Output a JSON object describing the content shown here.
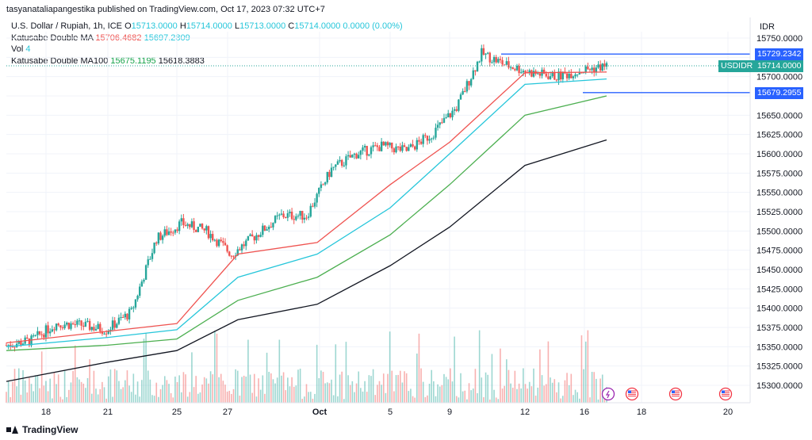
{
  "credit": "tasyanataliapangestika published on TradingView.com, Oct 17, 2023 07:32 UTC+7",
  "legend": {
    "symbol": "U.S. Dollar / Rupiah, 1h, ICE",
    "o_label": "O",
    "o": "15713.0000",
    "h_label": "H",
    "h": "15714.0000",
    "l_label": "L",
    "l": "15713.0000",
    "c_label": "C",
    "c": "15714.0000",
    "change": "0.0000 (0.00%)",
    "ma1_name": "Katusabe Double MA",
    "ma1_a": "15706.4682",
    "ma1_b": "15697.2809",
    "vol_name": "Vol",
    "vol_value": "4",
    "ma2_name": "Katusabe Double MA100",
    "ma2_a": "15675.1195",
    "ma2_b": "15618.3883"
  },
  "currency": "IDR",
  "price_tags": {
    "upper_level": "15729.2342",
    "symbol": "USDIDR",
    "last": "15714.0000",
    "lower_level": "15679.2955"
  },
  "footer": "TradingView",
  "colors": {
    "up": "#26a69a",
    "down": "#ef5350",
    "ma_red": "#ef5350",
    "ma_cyan": "#26c6da",
    "ma_green": "#4caf50",
    "ma_black": "#131722",
    "level": "#2962ff"
  },
  "chart_data": {
    "type": "line",
    "title": "U.S. Dollar / Rupiah, 1h, ICE",
    "x_ticks": [
      "18",
      "21",
      "25",
      "27",
      "Oct",
      "5",
      "9",
      "12",
      "16",
      "18",
      "20"
    ],
    "y_ticks": [
      "15750.0000",
      "15725.0000",
      "15700.0000",
      "15675.0000",
      "15650.0000",
      "15625.0000",
      "15600.0000",
      "15575.0000",
      "15550.0000",
      "15525.0000",
      "15500.0000",
      "15475.0000",
      "15450.0000",
      "15425.0000",
      "15400.0000",
      "15375.0000",
      "15350.0000",
      "15325.0000",
      "15300.0000"
    ],
    "ylim": [
      15285,
      15760
    ],
    "grid": true,
    "x": [
      "18",
      "21",
      "25",
      "27",
      "Oct",
      "5",
      "9",
      "12",
      "16"
    ],
    "series": [
      {
        "name": "Katusabe Double MA",
        "color": "#ef5350",
        "values": [
          15355,
          15370,
          15380,
          15470,
          15485,
          15560,
          15615,
          15705,
          15706
        ]
      },
      {
        "name": "Katusabe Double MA",
        "color": "#26c6da",
        "values": [
          15350,
          15362,
          15372,
          15440,
          15470,
          15530,
          15600,
          15690,
          15697
        ]
      },
      {
        "name": "Katusabe Double MA100",
        "color": "#4caf50",
        "values": [
          15345,
          15352,
          15360,
          15410,
          15440,
          15495,
          15560,
          15650,
          15675
        ]
      },
      {
        "name": "Katusabe Double MA100",
        "color": "#131722",
        "values": [
          15305,
          15330,
          15345,
          15385,
          15405,
          15455,
          15505,
          15585,
          15618
        ]
      }
    ],
    "price_closes": [
      15352,
      15358,
      15380,
      15378,
      15372,
      15395,
      15490,
      15510,
      15500,
      15470,
      15495,
      15520,
      15520,
      15580,
      15600,
      15610,
      15604,
      15625,
      15660,
      15730,
      15715,
      15705,
      15700,
      15708,
      15714
    ],
    "levels": [
      15729.2342,
      15679.2955
    ],
    "last_price": 15714.0
  }
}
